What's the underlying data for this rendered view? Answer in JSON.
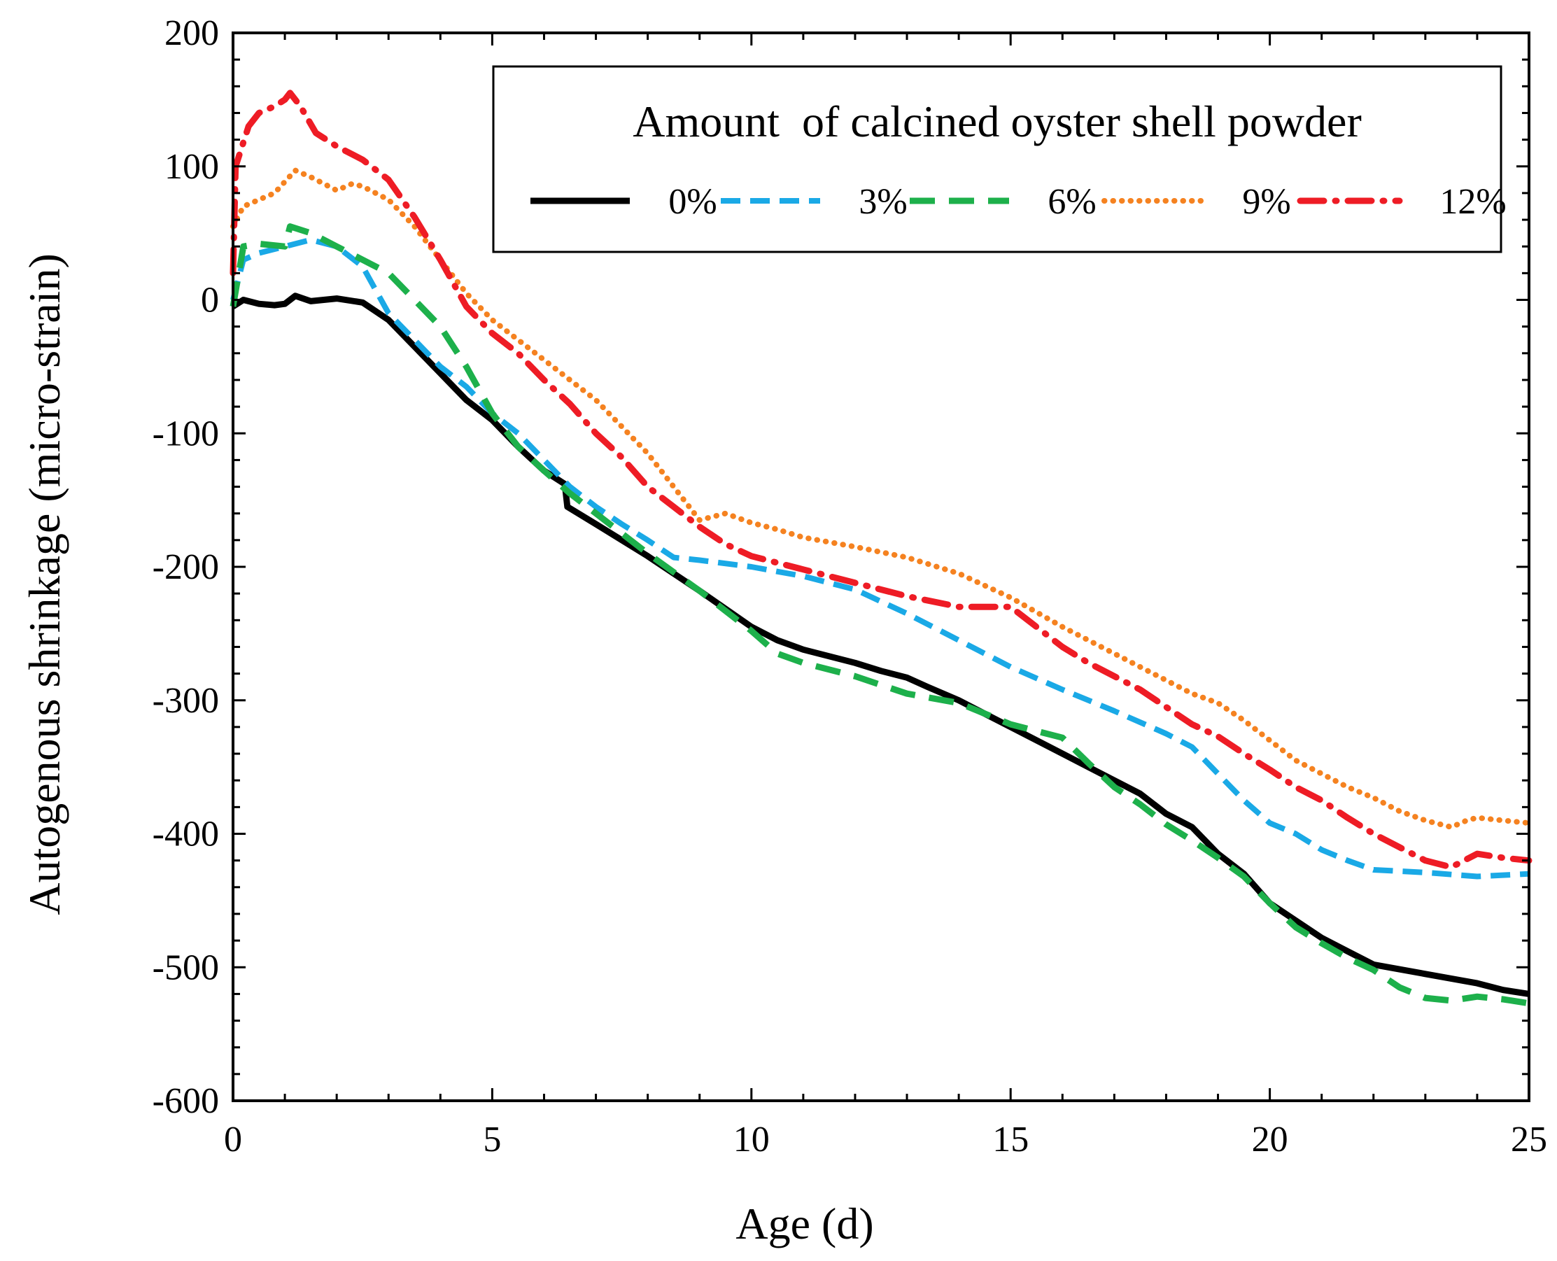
{
  "chart_data": {
    "type": "line",
    "xlabel": "Age (d)",
    "ylabel": "Autogenous shrinkage (micro-strain)",
    "xlim": [
      0,
      25
    ],
    "ylim": [
      -600,
      200
    ],
    "xticks": [
      0,
      5,
      10,
      15,
      20,
      25
    ],
    "yticks": [
      200,
      100,
      0,
      -100,
      -200,
      -300,
      -400,
      -500,
      -600
    ],
    "grid": false,
    "legend": {
      "title": "Amount  of calcined oyster shell powder",
      "placement": "top-right"
    },
    "series": [
      {
        "name": "0%",
        "color": "#000000",
        "style": "solid",
        "points": [
          [
            0,
            -5
          ],
          [
            0.2,
            0
          ],
          [
            0.5,
            -3
          ],
          [
            0.8,
            -4
          ],
          [
            1.0,
            -3
          ],
          [
            1.2,
            3
          ],
          [
            1.5,
            -1
          ],
          [
            2.0,
            1
          ],
          [
            2.5,
            -2
          ],
          [
            3.0,
            -15
          ],
          [
            3.5,
            -35
          ],
          [
            4.0,
            -55
          ],
          [
            4.5,
            -75
          ],
          [
            5.0,
            -90
          ],
          [
            5.5,
            -110
          ],
          [
            6.0,
            -128
          ],
          [
            6.4,
            -138
          ],
          [
            6.45,
            -155
          ],
          [
            7.0,
            -168
          ],
          [
            8.0,
            -192
          ],
          [
            9.0,
            -218
          ],
          [
            10.0,
            -245
          ],
          [
            10.5,
            -255
          ],
          [
            11.0,
            -262
          ],
          [
            11.5,
            -267
          ],
          [
            12.0,
            -272
          ],
          [
            12.5,
            -278
          ],
          [
            13.0,
            -283
          ],
          [
            13.4,
            -290
          ],
          [
            14.0,
            -300
          ],
          [
            15.0,
            -320
          ],
          [
            16.0,
            -340
          ],
          [
            16.5,
            -350
          ],
          [
            17.0,
            -360
          ],
          [
            17.5,
            -370
          ],
          [
            18.0,
            -385
          ],
          [
            18.5,
            -395
          ],
          [
            19.0,
            -415
          ],
          [
            19.5,
            -430
          ],
          [
            20.0,
            -452
          ],
          [
            20.5,
            -465
          ],
          [
            21.0,
            -478
          ],
          [
            21.5,
            -488
          ],
          [
            22.0,
            -498
          ],
          [
            23.0,
            -505
          ],
          [
            24.0,
            -512
          ],
          [
            24.5,
            -517
          ],
          [
            25.0,
            -520
          ]
        ]
      },
      {
        "name": "3%",
        "color": "#1aa9e6",
        "style": "dashed",
        "points": [
          [
            0,
            0
          ],
          [
            0.2,
            30
          ],
          [
            0.5,
            35
          ],
          [
            1.0,
            40
          ],
          [
            1.5,
            45
          ],
          [
            2.0,
            40
          ],
          [
            2.5,
            25
          ],
          [
            3.0,
            -10
          ],
          [
            3.5,
            -30
          ],
          [
            4.0,
            -50
          ],
          [
            4.5,
            -65
          ],
          [
            5.0,
            -85
          ],
          [
            5.5,
            -100
          ],
          [
            6.0,
            -120
          ],
          [
            6.5,
            -140
          ],
          [
            7.0,
            -155
          ],
          [
            7.5,
            -168
          ],
          [
            8.0,
            -180
          ],
          [
            8.5,
            -193
          ],
          [
            9.0,
            -195
          ],
          [
            10.0,
            -200
          ],
          [
            11.0,
            -207
          ],
          [
            12.0,
            -217
          ],
          [
            13.0,
            -235
          ],
          [
            14.0,
            -255
          ],
          [
            15.0,
            -275
          ],
          [
            16.0,
            -292
          ],
          [
            17.0,
            -308
          ],
          [
            18.0,
            -325
          ],
          [
            18.5,
            -335
          ],
          [
            19.0,
            -355
          ],
          [
            19.5,
            -375
          ],
          [
            20.0,
            -392
          ],
          [
            20.5,
            -400
          ],
          [
            21.0,
            -412
          ],
          [
            21.5,
            -420
          ],
          [
            22.0,
            -427
          ],
          [
            23.0,
            -429
          ],
          [
            24.0,
            -432
          ],
          [
            25.0,
            -430
          ]
        ]
      },
      {
        "name": "6%",
        "color": "#1db04b",
        "style": "longdash",
        "points": [
          [
            0,
            -5
          ],
          [
            0.2,
            40
          ],
          [
            0.5,
            42
          ],
          [
            1.0,
            40
          ],
          [
            1.1,
            55
          ],
          [
            1.5,
            50
          ],
          [
            2.0,
            40
          ],
          [
            2.5,
            30
          ],
          [
            3.0,
            20
          ],
          [
            3.5,
            0
          ],
          [
            4.0,
            -20
          ],
          [
            4.5,
            -50
          ],
          [
            5.0,
            -85
          ],
          [
            5.5,
            -110
          ],
          [
            6.0,
            -128
          ],
          [
            6.5,
            -145
          ],
          [
            7.0,
            -160
          ],
          [
            8.0,
            -190
          ],
          [
            9.0,
            -218
          ],
          [
            10.0,
            -248
          ],
          [
            10.5,
            -265
          ],
          [
            11.0,
            -272
          ],
          [
            12.0,
            -282
          ],
          [
            13.0,
            -295
          ],
          [
            14.0,
            -302
          ],
          [
            14.5,
            -310
          ],
          [
            15.0,
            -318
          ],
          [
            16.0,
            -328
          ],
          [
            16.5,
            -347
          ],
          [
            17.0,
            -365
          ],
          [
            17.5,
            -378
          ],
          [
            18.0,
            -393
          ],
          [
            18.5,
            -405
          ],
          [
            19.0,
            -418
          ],
          [
            19.5,
            -432
          ],
          [
            20.0,
            -452
          ],
          [
            20.5,
            -470
          ],
          [
            21.0,
            -482
          ],
          [
            21.5,
            -493
          ],
          [
            22.0,
            -502
          ],
          [
            22.5,
            -515
          ],
          [
            23.0,
            -523
          ],
          [
            23.5,
            -525
          ],
          [
            24.0,
            -522
          ],
          [
            24.5,
            -524
          ],
          [
            25.0,
            -527
          ]
        ]
      },
      {
        "name": "9%",
        "color": "#f58220",
        "style": "dotted",
        "points": [
          [
            0,
            55
          ],
          [
            0.2,
            70
          ],
          [
            0.5,
            75
          ],
          [
            0.8,
            80
          ],
          [
            1.2,
            97
          ],
          [
            1.5,
            92
          ],
          [
            2.0,
            82
          ],
          [
            2.3,
            87
          ],
          [
            2.5,
            85
          ],
          [
            3.0,
            75
          ],
          [
            3.5,
            55
          ],
          [
            4.0,
            30
          ],
          [
            4.5,
            5
          ],
          [
            5.0,
            -15
          ],
          [
            5.5,
            -30
          ],
          [
            6.0,
            -45
          ],
          [
            6.5,
            -60
          ],
          [
            7.0,
            -75
          ],
          [
            7.5,
            -95
          ],
          [
            8.0,
            -115
          ],
          [
            8.5,
            -140
          ],
          [
            9.0,
            -165
          ],
          [
            9.5,
            -160
          ],
          [
            10.0,
            -167
          ],
          [
            10.5,
            -172
          ],
          [
            11.0,
            -178
          ],
          [
            12.0,
            -185
          ],
          [
            13.0,
            -193
          ],
          [
            14.0,
            -205
          ],
          [
            15.0,
            -223
          ],
          [
            16.0,
            -245
          ],
          [
            16.5,
            -255
          ],
          [
            17.0,
            -265
          ],
          [
            17.5,
            -275
          ],
          [
            18.0,
            -285
          ],
          [
            18.5,
            -295
          ],
          [
            19.0,
            -302
          ],
          [
            19.5,
            -315
          ],
          [
            20.0,
            -330
          ],
          [
            20.5,
            -345
          ],
          [
            21.0,
            -355
          ],
          [
            21.5,
            -365
          ],
          [
            22.0,
            -373
          ],
          [
            22.5,
            -383
          ],
          [
            23.0,
            -390
          ],
          [
            23.5,
            -395
          ],
          [
            23.8,
            -390
          ],
          [
            24.0,
            -388
          ],
          [
            24.5,
            -390
          ],
          [
            25.0,
            -392
          ]
        ]
      },
      {
        "name": "12%",
        "color": "#ee1c25",
        "style": "dashdot",
        "points": [
          [
            0,
            20
          ],
          [
            0.05,
            100
          ],
          [
            0.3,
            130
          ],
          [
            0.5,
            140
          ],
          [
            0.8,
            145
          ],
          [
            1.0,
            150
          ],
          [
            1.1,
            155
          ],
          [
            1.3,
            145
          ],
          [
            1.6,
            125
          ],
          [
            2.0,
            115
          ],
          [
            2.5,
            105
          ],
          [
            3.0,
            90
          ],
          [
            3.5,
            62
          ],
          [
            4.0,
            30
          ],
          [
            4.5,
            -5
          ],
          [
            5.0,
            -25
          ],
          [
            5.5,
            -40
          ],
          [
            6.0,
            -60
          ],
          [
            6.5,
            -78
          ],
          [
            7.0,
            -100
          ],
          [
            7.5,
            -118
          ],
          [
            8.0,
            -140
          ],
          [
            8.5,
            -155
          ],
          [
            9.0,
            -170
          ],
          [
            9.5,
            -183
          ],
          [
            10.0,
            -192
          ],
          [
            11.0,
            -202
          ],
          [
            12.0,
            -212
          ],
          [
            13.0,
            -222
          ],
          [
            14.0,
            -230
          ],
          [
            15.0,
            -230
          ],
          [
            15.5,
            -245
          ],
          [
            16.0,
            -260
          ],
          [
            16.5,
            -272
          ],
          [
            17.0,
            -282
          ],
          [
            17.5,
            -292
          ],
          [
            18.0,
            -305
          ],
          [
            18.5,
            -318
          ],
          [
            19.0,
            -327
          ],
          [
            19.5,
            -340
          ],
          [
            20.0,
            -352
          ],
          [
            20.5,
            -365
          ],
          [
            21.0,
            -375
          ],
          [
            21.5,
            -388
          ],
          [
            22.0,
            -400
          ],
          [
            22.5,
            -410
          ],
          [
            23.0,
            -420
          ],
          [
            23.5,
            -425
          ],
          [
            24.0,
            -415
          ],
          [
            24.5,
            -418
          ],
          [
            25.0,
            -420
          ]
        ]
      }
    ]
  }
}
